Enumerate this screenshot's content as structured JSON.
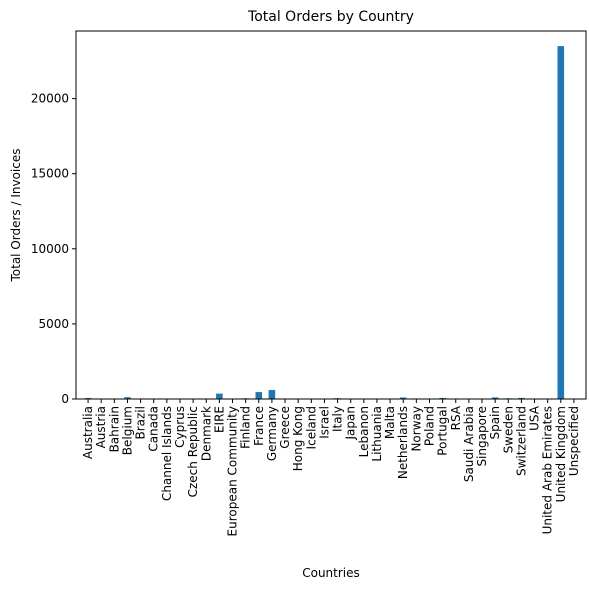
{
  "chart_data": {
    "type": "bar",
    "title": "Total Orders by Country",
    "xlabel": "Countries",
    "ylabel": "Total Orders / Invoices",
    "ylim": [
      0,
      24500
    ],
    "yticks": [
      0,
      5000,
      10000,
      15000,
      20000
    ],
    "grid": false,
    "legend": "none",
    "bar_color": "#1f77b4",
    "categories": [
      "Australia",
      "Austria",
      "Bahrain",
      "Belgium",
      "Brazil",
      "Canada",
      "Channel Islands",
      "Cyprus",
      "Czech Republic",
      "Denmark",
      "EIRE",
      "European Community",
      "Finland",
      "France",
      "Germany",
      "Greece",
      "Hong Kong",
      "Iceland",
      "Israel",
      "Italy",
      "Japan",
      "Lebanon",
      "Lithuania",
      "Malta",
      "Netherlands",
      "Norway",
      "Poland",
      "Portugal",
      "RSA",
      "Saudi Arabia",
      "Singapore",
      "Spain",
      "Sweden",
      "Switzerland",
      "USA",
      "United Arab Emirates",
      "United Kingdom",
      "Unspecified"
    ],
    "values": [
      69,
      19,
      4,
      119,
      1,
      6,
      33,
      20,
      5,
      21,
      360,
      5,
      48,
      461,
      603,
      6,
      15,
      7,
      6,
      55,
      28,
      1,
      4,
      10,
      101,
      36,
      24,
      71,
      1,
      2,
      10,
      105,
      46,
      71,
      7,
      3,
      23494,
      13
    ]
  }
}
